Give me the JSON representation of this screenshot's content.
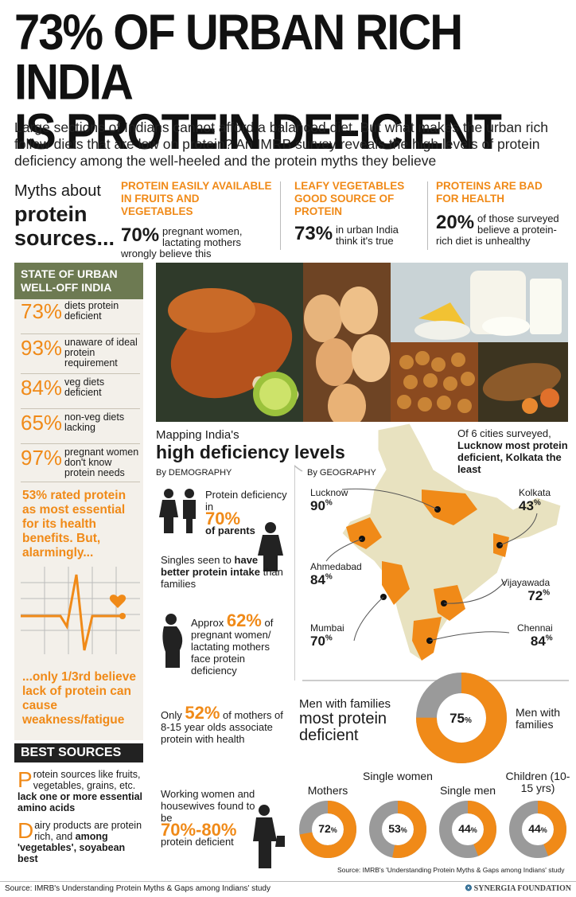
{
  "headline": {
    "line1": "73% OF URBAN RICH INDIA",
    "line2": "IS PROTEIN DEFICIENT"
  },
  "intro": "Large sections of Indians cannot afford a balanced diet. But what makes the urban rich follow diets that are low on protein? An IMRB survey reveals the high levels of protein deficiency among the well-heeled and the protein myths they believe",
  "myths": {
    "title_small": "Myths about",
    "title_big1": "protein",
    "title_big2": "sources...",
    "items": [
      {
        "head": "PROTEIN EASILY AVAILABLE IN FRUITS AND VEGETABLES",
        "pct": "70%",
        "text": "pregnant women, lactating mothers wrongly believe this"
      },
      {
        "head": "LEAFY VEGETABLES GOOD SOURCE OF PROTEIN",
        "pct": "73%",
        "text": "in urban India think it's true"
      },
      {
        "head": "PROTEINS ARE BAD FOR HEALTH",
        "pct": "20%",
        "text": "of those surveyed believe a protein-rich diet is unhealthy"
      }
    ]
  },
  "state": {
    "head": "STATE OF URBAN WELL-OFF INDIA",
    "stats": [
      {
        "pct": "73%",
        "text": "diets protein deficient"
      },
      {
        "pct": "93%",
        "text": "unaware of ideal protein requirement"
      },
      {
        "pct": "84%",
        "text": "veg diets deficient"
      },
      {
        "pct": "65%",
        "text": "non-veg diets lacking"
      },
      {
        "pct": "97%",
        "text": "pregnant women don't know protein needs"
      }
    ],
    "rated": "53% rated protein as most essential for its health benefits. But, alarmingly...",
    "only": "...only 1/3rd believe lack of protein can cause weakness/fatigue"
  },
  "best": {
    "head": "BEST SOURCES",
    "item1_cap": "P",
    "item1_text": "rotein sources like fruits, vegetables, grains, etc.",
    "item1_bold": "lack one or more essential amino acids",
    "item2_cap": "D",
    "item2_text": "airy products are protein rich, and",
    "item2_bold": "among 'vegetables', soyabean best"
  },
  "mapping": {
    "small": "Mapping India's",
    "big": "high deficiency levels",
    "by_demo": "By DEMOGRAPHY",
    "by_geo": "By GEOGRAPHY",
    "cities_note_plain": "Of 6 cities surveyed,",
    "cities_note_bold": "Lucknow most protein deficient, Kolkata the least"
  },
  "demography": {
    "parents_text": "Protein deficiency in",
    "parents_pct": "70%",
    "parents_of": "of parents",
    "singles_plain": "Singles seen to",
    "singles_bold": "have better protein intake",
    "singles_end": "than families",
    "pregnant_pre": "Approx",
    "pregnant_pct": "62%",
    "pregnant_post": "of pregnant women/ lactating mothers face protein deficiency",
    "mothers_pre": "Only",
    "mothers_pct": "52%",
    "mothers_post": "of mothers of 8-15 year olds associate protein with health",
    "working_text": "Working women and housewives found to be",
    "working_pct": "70%-80%",
    "working_post": "protein deficient"
  },
  "cities": [
    {
      "name": "Lucknow",
      "pct": "90",
      "unit": "%"
    },
    {
      "name": "Kolkata",
      "pct": "43",
      "unit": "%"
    },
    {
      "name": "Ahmedabad",
      "pct": "84",
      "unit": "%"
    },
    {
      "name": "Vijayawada",
      "pct": "72",
      "unit": "%"
    },
    {
      "name": "Mumbai",
      "pct": "70",
      "unit": "%"
    },
    {
      "name": "Chennai",
      "pct": "84",
      "unit": "%"
    }
  ],
  "men": {
    "title1": "Men with families",
    "title2": "most protein deficient",
    "pct": "75",
    "unit": "%",
    "label": "Men with families"
  },
  "groups": [
    {
      "label": "Mothers",
      "pct": "72",
      "unit": "%"
    },
    {
      "label": "Single women",
      "pct": "53",
      "unit": "%"
    },
    {
      "label": "Single men",
      "pct": "44",
      "unit": "%"
    },
    {
      "label": "Children (10-15 yrs)",
      "pct": "44",
      "unit": "%"
    }
  ],
  "chart_data": {
    "type": "pie",
    "categories": [
      "Men with families",
      "Mothers",
      "Single women",
      "Single men",
      "Children (10-15 yrs)"
    ],
    "values": [
      75,
      72,
      53,
      44,
      44
    ]
  },
  "source_inner": "Source: IMRB's 'Understanding Protein Myths & Gaps among Indians' study",
  "footer_source": "Source: IMRB's Understanding Protein Myths & Gaps among Indians' study",
  "footer_brand": "SYNERGIA FOUNDATION",
  "colors": {
    "orange": "#f08a18",
    "olive": "#6d7a52",
    "map_land": "#e8e2c0",
    "grey": "#9a9a9a"
  }
}
